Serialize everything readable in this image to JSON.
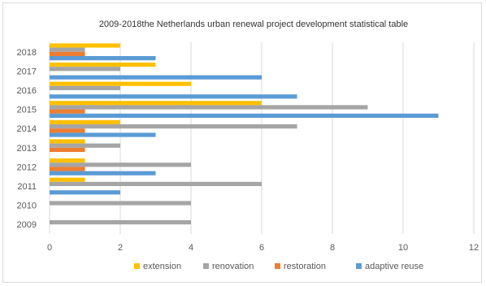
{
  "chart_data": {
    "type": "bar",
    "orientation": "horizontal",
    "title": "2009-2018the Netherlands urban renewal project development statistical table",
    "categories": [
      "2009",
      "2010",
      "2011",
      "2012",
      "2013",
      "2014",
      "2015",
      "2016",
      "2017",
      "2018"
    ],
    "series": [
      {
        "name": "extension",
        "color": "#FFC000",
        "values": [
          0,
          0,
          1,
          1,
          1,
          2,
          6,
          4,
          3,
          2
        ]
      },
      {
        "name": "renovation",
        "color": "#A5A5A5",
        "values": [
          4,
          4,
          6,
          4,
          2,
          7,
          9,
          2,
          2,
          1
        ]
      },
      {
        "name": "restoration",
        "color": "#ED7D31",
        "values": [
          0,
          0,
          0,
          1,
          1,
          1,
          1,
          0,
          0,
          1
        ]
      },
      {
        "name": "adaptive reuse",
        "color": "#5B9BD5",
        "values": [
          0,
          0,
          2,
          3,
          0,
          3,
          11,
          7,
          6,
          3
        ]
      }
    ],
    "xlim": [
      0,
      12
    ],
    "xticks": [
      0,
      2,
      4,
      6,
      8,
      10,
      12
    ],
    "grid": true,
    "legend_position": "bottom"
  }
}
